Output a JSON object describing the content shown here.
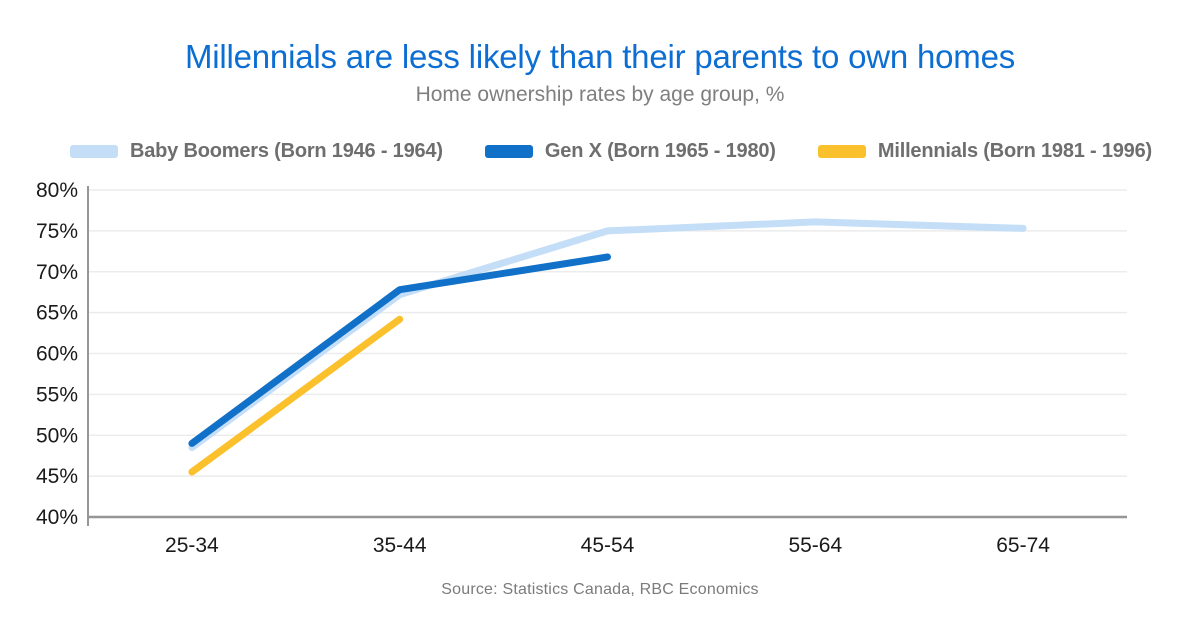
{
  "chart_data": {
    "type": "line",
    "title": "Millennials are less likely than their parents to own homes",
    "subtitle": "Home ownership rates by age group, %",
    "categories": [
      "25-34",
      "35-44",
      "45-54",
      "55-64",
      "65-74"
    ],
    "series": [
      {
        "name": "Baby Boomers (Born 1946 - 1964)",
        "color": "#C3DEF6",
        "values": [
          48.5,
          67.2,
          75.0,
          76.1,
          75.3
        ]
      },
      {
        "name": "Gen X (Born 1965 - 1980)",
        "color": "#1170C8",
        "values": [
          49.0,
          67.8,
          71.8
        ]
      },
      {
        "name": "Millennials (Born 1981 - 1996)",
        "color": "#FBC12D",
        "values": [
          45.5,
          64.2
        ]
      }
    ],
    "xlabel": "",
    "ylabel": "",
    "ylim": [
      40,
      80
    ],
    "ytick_step": 5,
    "yticks": [
      "80%",
      "75%",
      "70%",
      "65%",
      "60%",
      "55%",
      "50%",
      "45%",
      "40%"
    ],
    "grid": true,
    "legend_position": "top",
    "line_width": 7
  },
  "source_note": "Source: Statistics Canada, RBC Economics",
  "colors": {
    "title": "#0C6ED3",
    "subtitle": "#7F7F7F",
    "legend_text": "#6E6E6E",
    "axis_line": "#969696",
    "gridline": "#ECECEC",
    "tick_label": "#1A1A1A",
    "source_text": "#7B7B7B",
    "background": "#FFFFFF"
  }
}
